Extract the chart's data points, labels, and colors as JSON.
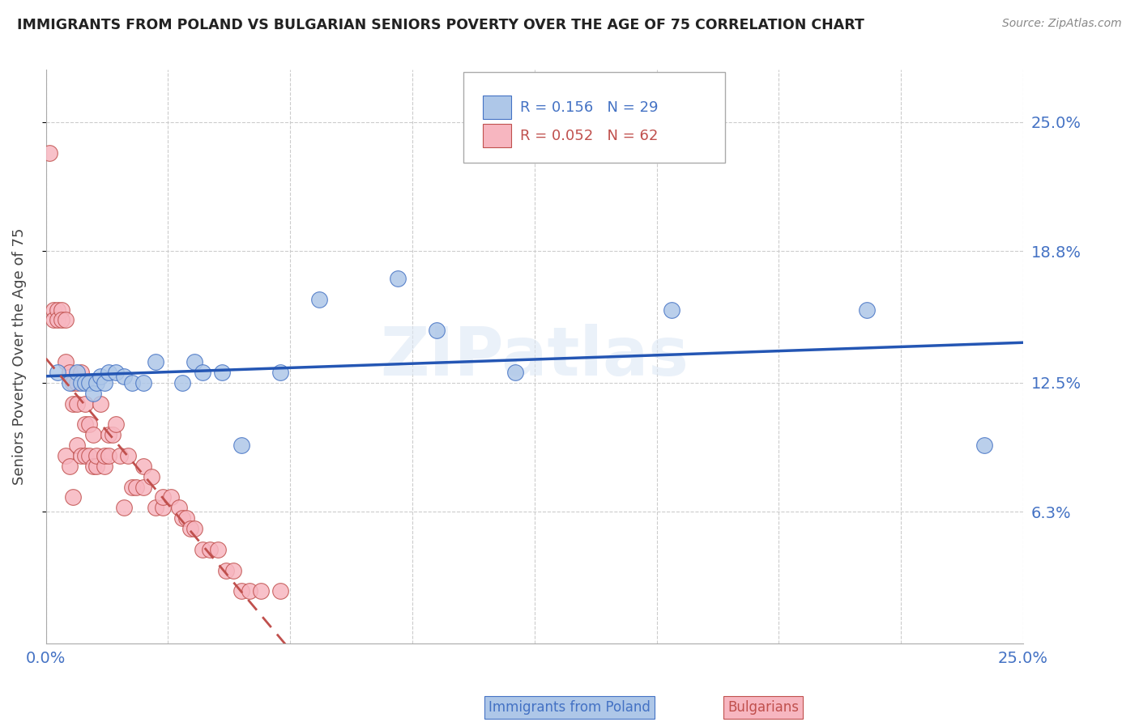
{
  "title": "IMMIGRANTS FROM POLAND VS BULGARIAN SENIORS POVERTY OVER THE AGE OF 75 CORRELATION CHART",
  "source": "Source: ZipAtlas.com",
  "ylabel": "Seniors Poverty Over the Age of 75",
  "xlim": [
    0.0,
    0.25
  ],
  "ylim": [
    0.0,
    0.275
  ],
  "yticks": [
    0.063,
    0.125,
    0.188,
    0.25
  ],
  "ytick_labels": [
    "6.3%",
    "12.5%",
    "18.8%",
    "25.0%"
  ],
  "xtick_labels": [
    "0.0%",
    "25.0%"
  ],
  "legend_entries": [
    {
      "label": "R = 0.156   N = 29",
      "color": "#4472c4"
    },
    {
      "label": "R = 0.052   N = 62",
      "color": "#c0504d"
    }
  ],
  "poland_scatter_x": [
    0.003,
    0.006,
    0.008,
    0.009,
    0.01,
    0.011,
    0.012,
    0.013,
    0.014,
    0.015,
    0.016,
    0.018,
    0.02,
    0.022,
    0.025,
    0.028,
    0.035,
    0.038,
    0.04,
    0.045,
    0.05,
    0.06,
    0.07,
    0.09,
    0.1,
    0.12,
    0.16,
    0.21,
    0.24
  ],
  "poland_scatter_y": [
    0.13,
    0.125,
    0.13,
    0.125,
    0.125,
    0.125,
    0.12,
    0.125,
    0.128,
    0.125,
    0.13,
    0.13,
    0.128,
    0.125,
    0.125,
    0.135,
    0.125,
    0.135,
    0.13,
    0.13,
    0.095,
    0.13,
    0.165,
    0.175,
    0.15,
    0.13,
    0.16,
    0.16,
    0.095
  ],
  "bulgarian_scatter_x": [
    0.001,
    0.002,
    0.002,
    0.003,
    0.003,
    0.004,
    0.004,
    0.005,
    0.005,
    0.005,
    0.006,
    0.006,
    0.007,
    0.007,
    0.007,
    0.008,
    0.008,
    0.008,
    0.009,
    0.009,
    0.01,
    0.01,
    0.01,
    0.011,
    0.011,
    0.012,
    0.012,
    0.013,
    0.013,
    0.014,
    0.015,
    0.015,
    0.016,
    0.016,
    0.017,
    0.018,
    0.019,
    0.02,
    0.021,
    0.022,
    0.023,
    0.025,
    0.025,
    0.027,
    0.028,
    0.03,
    0.03,
    0.032,
    0.034,
    0.035,
    0.036,
    0.037,
    0.038,
    0.04,
    0.042,
    0.044,
    0.046,
    0.048,
    0.05,
    0.052,
    0.055,
    0.06
  ],
  "bulgarian_scatter_y": [
    0.235,
    0.16,
    0.155,
    0.16,
    0.155,
    0.16,
    0.155,
    0.09,
    0.135,
    0.155,
    0.085,
    0.13,
    0.07,
    0.115,
    0.125,
    0.095,
    0.115,
    0.125,
    0.09,
    0.13,
    0.09,
    0.105,
    0.115,
    0.09,
    0.105,
    0.085,
    0.1,
    0.085,
    0.09,
    0.115,
    0.085,
    0.09,
    0.09,
    0.1,
    0.1,
    0.105,
    0.09,
    0.065,
    0.09,
    0.075,
    0.075,
    0.075,
    0.085,
    0.08,
    0.065,
    0.065,
    0.07,
    0.07,
    0.065,
    0.06,
    0.06,
    0.055,
    0.055,
    0.045,
    0.045,
    0.045,
    0.035,
    0.035,
    0.025,
    0.025,
    0.025,
    0.025
  ],
  "poland_color": "#aec7e8",
  "polish_edge_color": "#4472c4",
  "bulgarian_color": "#f7b6c0",
  "bulgarian_edge_color": "#c0504d",
  "poland_line_color": "#2456b4",
  "bulgarian_line_color": "#c0504d",
  "watermark": "ZIPatlas",
  "background_color": "#ffffff",
  "grid_color": "#cccccc"
}
